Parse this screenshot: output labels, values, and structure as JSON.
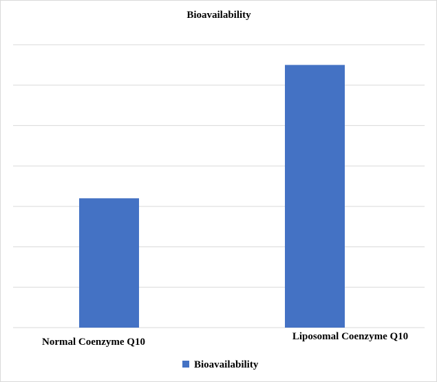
{
  "chart_data": {
    "type": "bar",
    "title": "Bioavailability",
    "categories": [
      "Normal Coenzyme Q10",
      "Liposomal Coenzyme Q10"
    ],
    "series": [
      {
        "name": "Bioavailability",
        "values": [
          3.2,
          6.5
        ]
      }
    ],
    "ylim": [
      0,
      7
    ],
    "grid": true,
    "xlabel": "",
    "ylabel": "",
    "legend": "bottom-center",
    "colors": {
      "bar": "#4472c4",
      "grid": "#d9d9d9",
      "text": "#000000"
    }
  }
}
